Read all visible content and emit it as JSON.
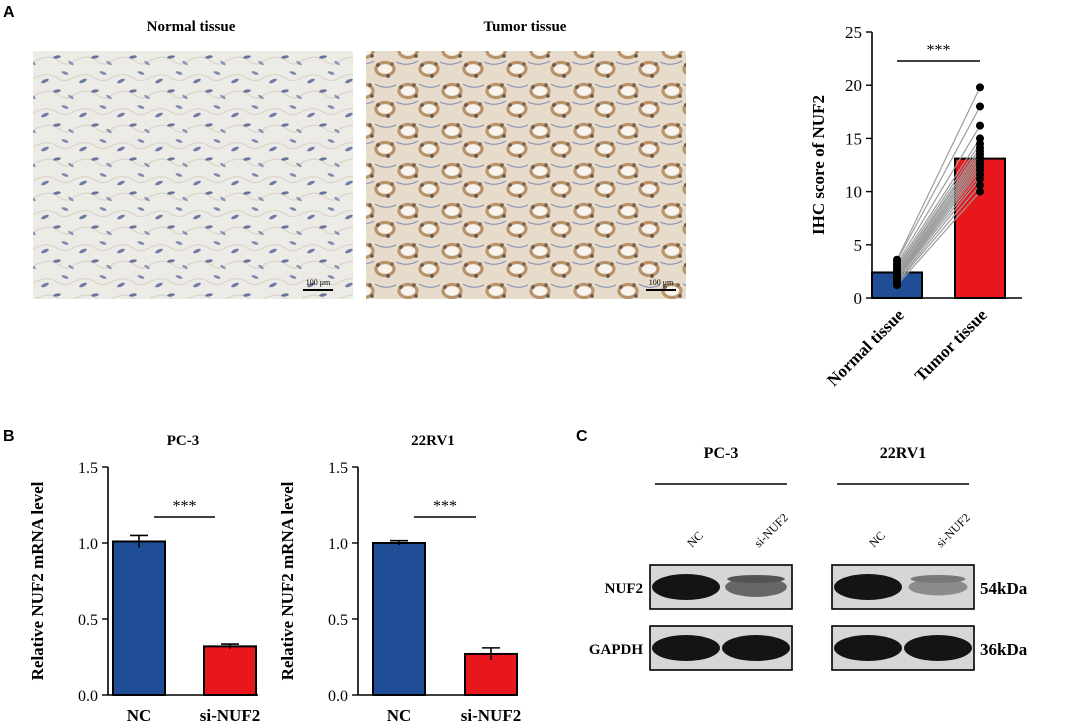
{
  "panels": {
    "a": {
      "letter": "A",
      "images": [
        {
          "title": "Normal tissue",
          "scale_label": "100 μm",
          "tone": "normal"
        },
        {
          "title": "Tumor tissue",
          "scale_label": "100 μm",
          "tone": "tumor"
        }
      ]
    },
    "b": {
      "letter": "B"
    },
    "c": {
      "letter": "C",
      "groups": [
        {
          "cell_line": "PC-3",
          "lanes": [
            "NC",
            "si-NUF2"
          ]
        },
        {
          "cell_line": "22RV1",
          "lanes": [
            "NC",
            "si-NUF2"
          ]
        }
      ],
      "rows": [
        {
          "protein": "NUF2",
          "size": "54kDa"
        },
        {
          "protein": "GAPDH",
          "size": "36kDa"
        }
      ],
      "band_intensity": {
        "NUF2": [
          [
            1.0,
            0.55
          ],
          [
            1.0,
            0.35
          ]
        ],
        "GAPDH": [
          [
            1.0,
            1.0
          ],
          [
            1.0,
            1.0
          ]
        ]
      }
    }
  },
  "colors": {
    "blue": "#1f4e96",
    "red": "#e8171c",
    "tissue_normal": "#ecebe6",
    "tissue_tumor": "#ddd0bd"
  },
  "chart_data": [
    {
      "type": "bar",
      "panel": "A",
      "title": "",
      "ylabel": "IHC score of NUF2",
      "categories": [
        "Normal tissue",
        "Tumor tissue"
      ],
      "values": [
        2.4,
        13.1
      ],
      "ylim": [
        0,
        25
      ],
      "yticks": [
        0,
        5,
        10,
        15,
        20,
        25
      ],
      "significance": "***",
      "paired_points": [
        [
          1.2,
          10.0
        ],
        [
          1.4,
          10.6
        ],
        [
          1.5,
          11.2
        ],
        [
          1.7,
          11.6
        ],
        [
          1.8,
          12.0
        ],
        [
          1.9,
          12.3
        ],
        [
          2.0,
          12.6
        ],
        [
          2.1,
          12.9
        ],
        [
          2.2,
          13.2
        ],
        [
          2.3,
          13.5
        ],
        [
          2.5,
          13.8
        ],
        [
          2.6,
          14.1
        ],
        [
          2.8,
          14.5
        ],
        [
          3.0,
          15.0
        ],
        [
          3.2,
          16.2
        ],
        [
          3.5,
          18.0
        ],
        [
          3.6,
          19.8
        ]
      ]
    },
    {
      "type": "bar",
      "panel": "B",
      "title": "PC-3",
      "ylabel": "Relative NUF2 mRNA level",
      "categories": [
        "NC",
        "si-NUF2"
      ],
      "values": [
        1.01,
        0.32
      ],
      "errors": [
        0.04,
        0.015
      ],
      "ylim": [
        0,
        1.5
      ],
      "yticks": [
        0.0,
        0.5,
        1.0,
        1.5
      ],
      "significance": "***"
    },
    {
      "type": "bar",
      "panel": "B",
      "title": "22RV1",
      "ylabel": "Relative NUF2 mRNA level",
      "categories": [
        "NC",
        "si-NUF2"
      ],
      "values": [
        1.0,
        0.27
      ],
      "errors": [
        0.015,
        0.04
      ],
      "ylim": [
        0,
        1.5
      ],
      "yticks": [
        0.0,
        0.5,
        1.0,
        1.5
      ],
      "significance": "***"
    }
  ]
}
